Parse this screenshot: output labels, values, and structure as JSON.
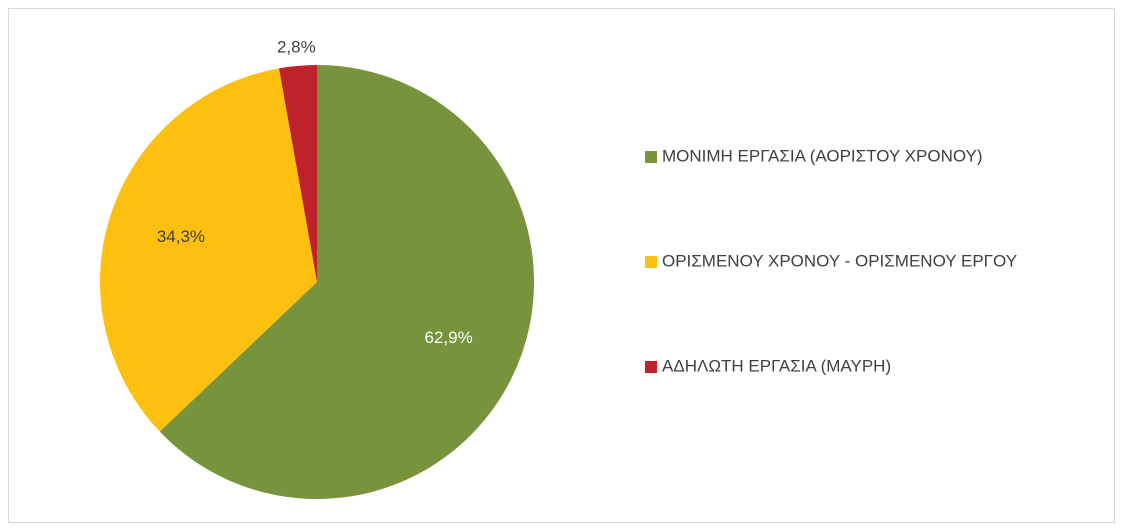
{
  "chart_data": {
    "type": "pie",
    "categories": [
      "ΜΟΝΙΜΗ ΕΡΓΑΣΙΑ (ΑΟΡΙΣΤΟΥ ΧΡΟΝΟΥ)",
      "ΟΡΙΣΜΕΝΟΥ ΧΡΟΝΟΥ - ΟΡΙΣΜΕΝΟΥ ΕΡΓΟΥ",
      "ΑΔΗΛΩΤΗ ΕΡΓΑΣΙΑ (ΜΑΥΡΗ)"
    ],
    "values": [
      62.9,
      34.3,
      2.8
    ],
    "value_labels": [
      "62,9%",
      "34,3%",
      "2,8%"
    ],
    "colors": [
      "#77933c",
      "#fdbf10",
      "#c0222b"
    ],
    "legend": "right"
  }
}
